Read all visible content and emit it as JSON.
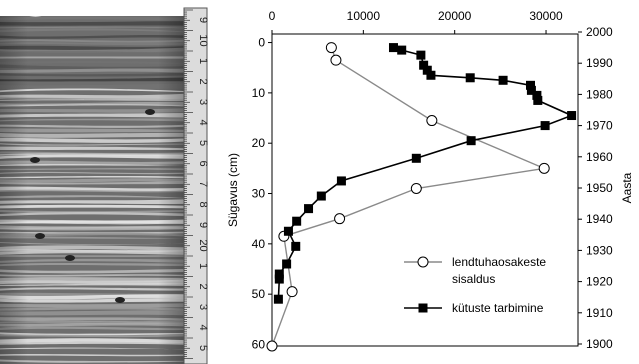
{
  "chart_data": {
    "type": "line",
    "x_axis": {
      "ticks": [
        0,
        10000,
        20000,
        30000
      ],
      "tick_labels": [
        "0",
        "10000",
        "20000",
        "30000"
      ],
      "range": [
        0,
        33500
      ],
      "position": "top"
    },
    "y_left": {
      "label": "Sügavus (cm)",
      "ticks": [
        0,
        10,
        20,
        30,
        40,
        50,
        60
      ],
      "tick_labels": [
        "0",
        "10",
        "20",
        "30",
        "40",
        "50",
        "60"
      ],
      "range": [
        60.3,
        -1.7
      ],
      "inverted": true
    },
    "y_right": {
      "label": "Aasta",
      "ticks": [
        2000,
        1990,
        1980,
        1970,
        1960,
        1950,
        1940,
        1930,
        1920,
        1910,
        1900
      ],
      "tick_labels": [
        "2000",
        "1990",
        "1980",
        "1970",
        "1960",
        "1950",
        "1940",
        "1930",
        "1920",
        "1910",
        "1900"
      ]
    },
    "grid": false,
    "legend_position": "bottom-right",
    "series": [
      {
        "name": "lendtuhaosakeste sisaldus",
        "name_lines": [
          "lendtuhaosakeste",
          "sisaldus"
        ],
        "marker": "open-circle",
        "line_color": "#8a8a8a",
        "points": [
          {
            "x": 6500,
            "y": 1
          },
          {
            "x": 7000,
            "y": 3.5
          },
          {
            "x": 17500,
            "y": 15.5
          },
          {
            "x": 29800,
            "y": 25
          },
          {
            "x": 15800,
            "y": 29
          },
          {
            "x": 7400,
            "y": 35
          },
          {
            "x": 1300,
            "y": 38.5
          },
          {
            "x": 2200,
            "y": 49.5
          },
          {
            "x": 0,
            "y": 60.3
          }
        ]
      },
      {
        "name": "kütuste tarbimine",
        "marker": "filled-square",
        "line_color": "#000000",
        "points": [
          {
            "x": 13300,
            "y": 1
          },
          {
            "x": 14200,
            "y": 1.5
          },
          {
            "x": 16300,
            "y": 2.5
          },
          {
            "x": 16600,
            "y": 4.5
          },
          {
            "x": 17000,
            "y": 5.5
          },
          {
            "x": 17400,
            "y": 6.5
          },
          {
            "x": 21700,
            "y": 7
          },
          {
            "x": 25300,
            "y": 7.5
          },
          {
            "x": 28300,
            "y": 8.5
          },
          {
            "x": 28400,
            "y": 9.5
          },
          {
            "x": 29000,
            "y": 10.5
          },
          {
            "x": 29100,
            "y": 11.5
          },
          {
            "x": 32800,
            "y": 14.5
          },
          {
            "x": 29900,
            "y": 16.5
          },
          {
            "x": 21800,
            "y": 19.5
          },
          {
            "x": 15800,
            "y": 23
          },
          {
            "x": 7600,
            "y": 27.5
          },
          {
            "x": 5400,
            "y": 30.5
          },
          {
            "x": 4000,
            "y": 33
          },
          {
            "x": 2700,
            "y": 35.5
          },
          {
            "x": 1800,
            "y": 37.5
          },
          {
            "x": 2600,
            "y": 40.5
          },
          {
            "x": 1600,
            "y": 44
          },
          {
            "x": 800,
            "y": 46
          },
          {
            "x": 800,
            "y": 47
          },
          {
            "x": 700,
            "y": 51
          }
        ]
      }
    ]
  },
  "sediment_core": {
    "ruler_labels": [
      "9",
      "10",
      "1",
      "2",
      "3",
      "4",
      "5",
      "6",
      "7",
      "8",
      "9",
      "20",
      "1",
      "2",
      "3",
      "4",
      "5"
    ]
  }
}
